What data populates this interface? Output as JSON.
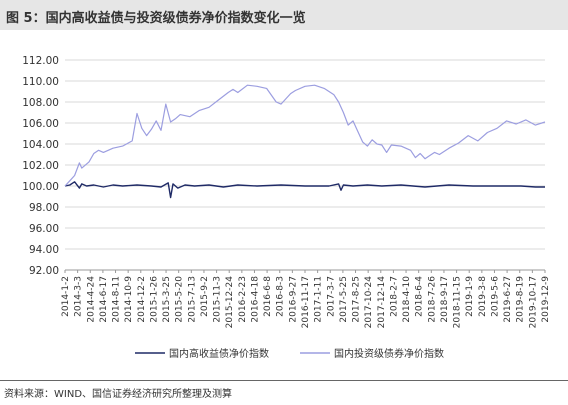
{
  "figure": {
    "title": "图 5：国内高收益债与投资级债券净价指数变化一览",
    "source": "资料来源：WIND、国信证券经济研究所整理及测算"
  },
  "chart_data": {
    "type": "line",
    "title": "图 5：国内高收益债与投资级债券净价指数变化一览",
    "xlabel": "",
    "ylabel": "",
    "ylim": [
      92,
      112
    ],
    "yticks": [
      "92.00",
      "94.00",
      "96.00",
      "98.00",
      "100.00",
      "102.00",
      "104.00",
      "106.00",
      "108.00",
      "110.00",
      "112.00"
    ],
    "grid": true,
    "legend_position": "bottom",
    "x_tick_labels": [
      "2014-1-2",
      "2014-3-3",
      "2014-4-24",
      "2014-6-17",
      "2014-8-11",
      "2014-10-9",
      "2014-12-2",
      "2015-1-26",
      "2015-3-25",
      "2015-5-20",
      "2015-7-13",
      "2015-9-2",
      "2015-11-3",
      "2015-12-24",
      "2016-2-23",
      "2016-4-18",
      "2016-6-8",
      "2016-8-3",
      "2016-9-27",
      "2016-11-17",
      "2017-1-11",
      "2017-3-7",
      "2017-5-25",
      "2017-8-25",
      "2017-10-24",
      "2017-12-14",
      "2018-2-7",
      "2018-4-10",
      "2018-6-4",
      "2018-7-26",
      "2018-9-17",
      "2018-11-15",
      "2019-1-9",
      "2019-3-8",
      "2019-5-6",
      "2019-6-27",
      "2019-8-19",
      "2019-10-17",
      "2019-12-9"
    ],
    "series": [
      {
        "name": "国内高收益债净价指数",
        "color": "#1f2a66",
        "x": [
          0,
          0.01,
          0.02,
          0.03,
          0.035,
          0.045,
          0.06,
          0.08,
          0.1,
          0.12,
          0.15,
          0.18,
          0.2,
          0.215,
          0.22,
          0.225,
          0.235,
          0.25,
          0.27,
          0.3,
          0.33,
          0.36,
          0.4,
          0.45,
          0.5,
          0.55,
          0.57,
          0.575,
          0.58,
          0.6,
          0.63,
          0.66,
          0.7,
          0.75,
          0.8,
          0.85,
          0.9,
          0.95,
          0.98,
          1.0
        ],
        "y": [
          100.0,
          100.1,
          100.4,
          99.8,
          100.2,
          100.0,
          100.1,
          99.9,
          100.1,
          100.0,
          100.1,
          100.0,
          99.9,
          100.3,
          98.9,
          100.2,
          99.8,
          100.1,
          100.0,
          100.1,
          99.9,
          100.1,
          100.0,
          100.1,
          100.0,
          100.0,
          100.2,
          99.6,
          100.1,
          100.0,
          100.1,
          100.0,
          100.1,
          99.9,
          100.1,
          100.0,
          100.0,
          100.0,
          99.9,
          99.9
        ]
      },
      {
        "name": "国内投资级债券净价指数",
        "color": "#9c9ee0",
        "x": [
          0,
          0.01,
          0.02,
          0.03,
          0.035,
          0.05,
          0.06,
          0.07,
          0.08,
          0.1,
          0.12,
          0.14,
          0.15,
          0.16,
          0.17,
          0.18,
          0.19,
          0.2,
          0.21,
          0.22,
          0.23,
          0.24,
          0.26,
          0.28,
          0.3,
          0.32,
          0.34,
          0.35,
          0.36,
          0.38,
          0.4,
          0.42,
          0.44,
          0.45,
          0.46,
          0.47,
          0.48,
          0.5,
          0.52,
          0.54,
          0.56,
          0.57,
          0.58,
          0.59,
          0.6,
          0.62,
          0.63,
          0.64,
          0.65,
          0.66,
          0.67,
          0.68,
          0.7,
          0.72,
          0.73,
          0.74,
          0.75,
          0.76,
          0.77,
          0.78,
          0.8,
          0.82,
          0.84,
          0.86,
          0.88,
          0.9,
          0.92,
          0.94,
          0.96,
          0.98,
          1.0
        ],
        "y": [
          100.0,
          100.5,
          101.0,
          102.2,
          101.7,
          102.3,
          103.1,
          103.4,
          103.2,
          103.6,
          103.8,
          104.3,
          106.9,
          105.5,
          104.8,
          105.4,
          106.2,
          105.3,
          107.8,
          106.1,
          106.4,
          106.8,
          106.6,
          107.2,
          107.5,
          108.2,
          108.9,
          109.2,
          108.9,
          109.6,
          109.5,
          109.3,
          108.0,
          107.8,
          108.3,
          108.8,
          109.1,
          109.5,
          109.6,
          109.3,
          108.7,
          108.0,
          107.0,
          105.8,
          106.2,
          104.2,
          103.8,
          104.4,
          104.0,
          103.9,
          103.2,
          103.9,
          103.8,
          103.4,
          102.7,
          103.1,
          102.6,
          102.9,
          103.2,
          103.0,
          103.6,
          104.1,
          104.8,
          104.3,
          105.1,
          105.5,
          106.2,
          105.9,
          106.3,
          105.8,
          106.1
        ]
      }
    ]
  }
}
